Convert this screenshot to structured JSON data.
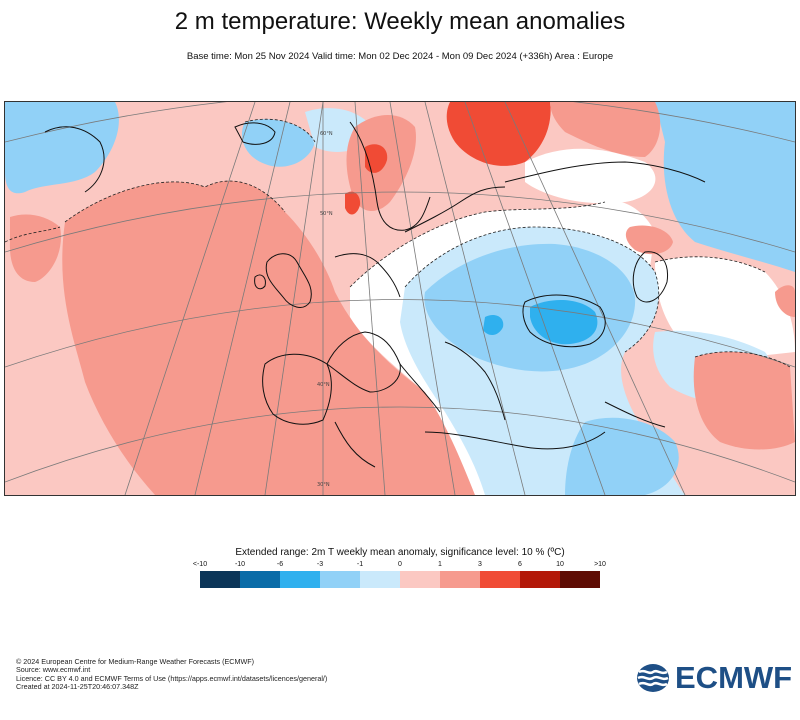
{
  "header": {
    "title": "2 m temperature: Weekly mean anomalies",
    "subtitle": "Base time: Mon 25 Nov 2024 Valid time: Mon 02 Dec 2024 - Mon 09 Dec 2024 (+336h) Area : Europe"
  },
  "map": {
    "region": "Europe",
    "grid_labels": [
      "30°N",
      "40°N",
      "50°N",
      "60°N"
    ]
  },
  "legend": {
    "title": "Extended range: 2m T weekly mean anomaly, significance level: 10 % (ºC)",
    "ticks": [
      "<-10",
      "-10",
      "-6",
      "-3",
      "-1",
      "0",
      "1",
      "3",
      "6",
      "10",
      ">10"
    ],
    "colors": [
      "#0b3558",
      "#0a6ca8",
      "#2fb0ee",
      "#91d1f7",
      "#cae9fb",
      "#fbc8c2",
      "#f69a8e",
      "#f04b35",
      "#b31808",
      "#5f0c04"
    ]
  },
  "footer": {
    "line1": "© 2024 European Centre for Medium-Range Weather Forecasts (ECMWF)",
    "line2": "Source: www.ecmwf.int",
    "line3": "Licence: CC BY 4.0 and ECMWF Terms of Use (https://apps.ecmwf.int/datasets/licences/general/)",
    "line4": "Created at 2024-11-25T20:46:07.348Z"
  },
  "logo": {
    "text": "ECMWF"
  }
}
